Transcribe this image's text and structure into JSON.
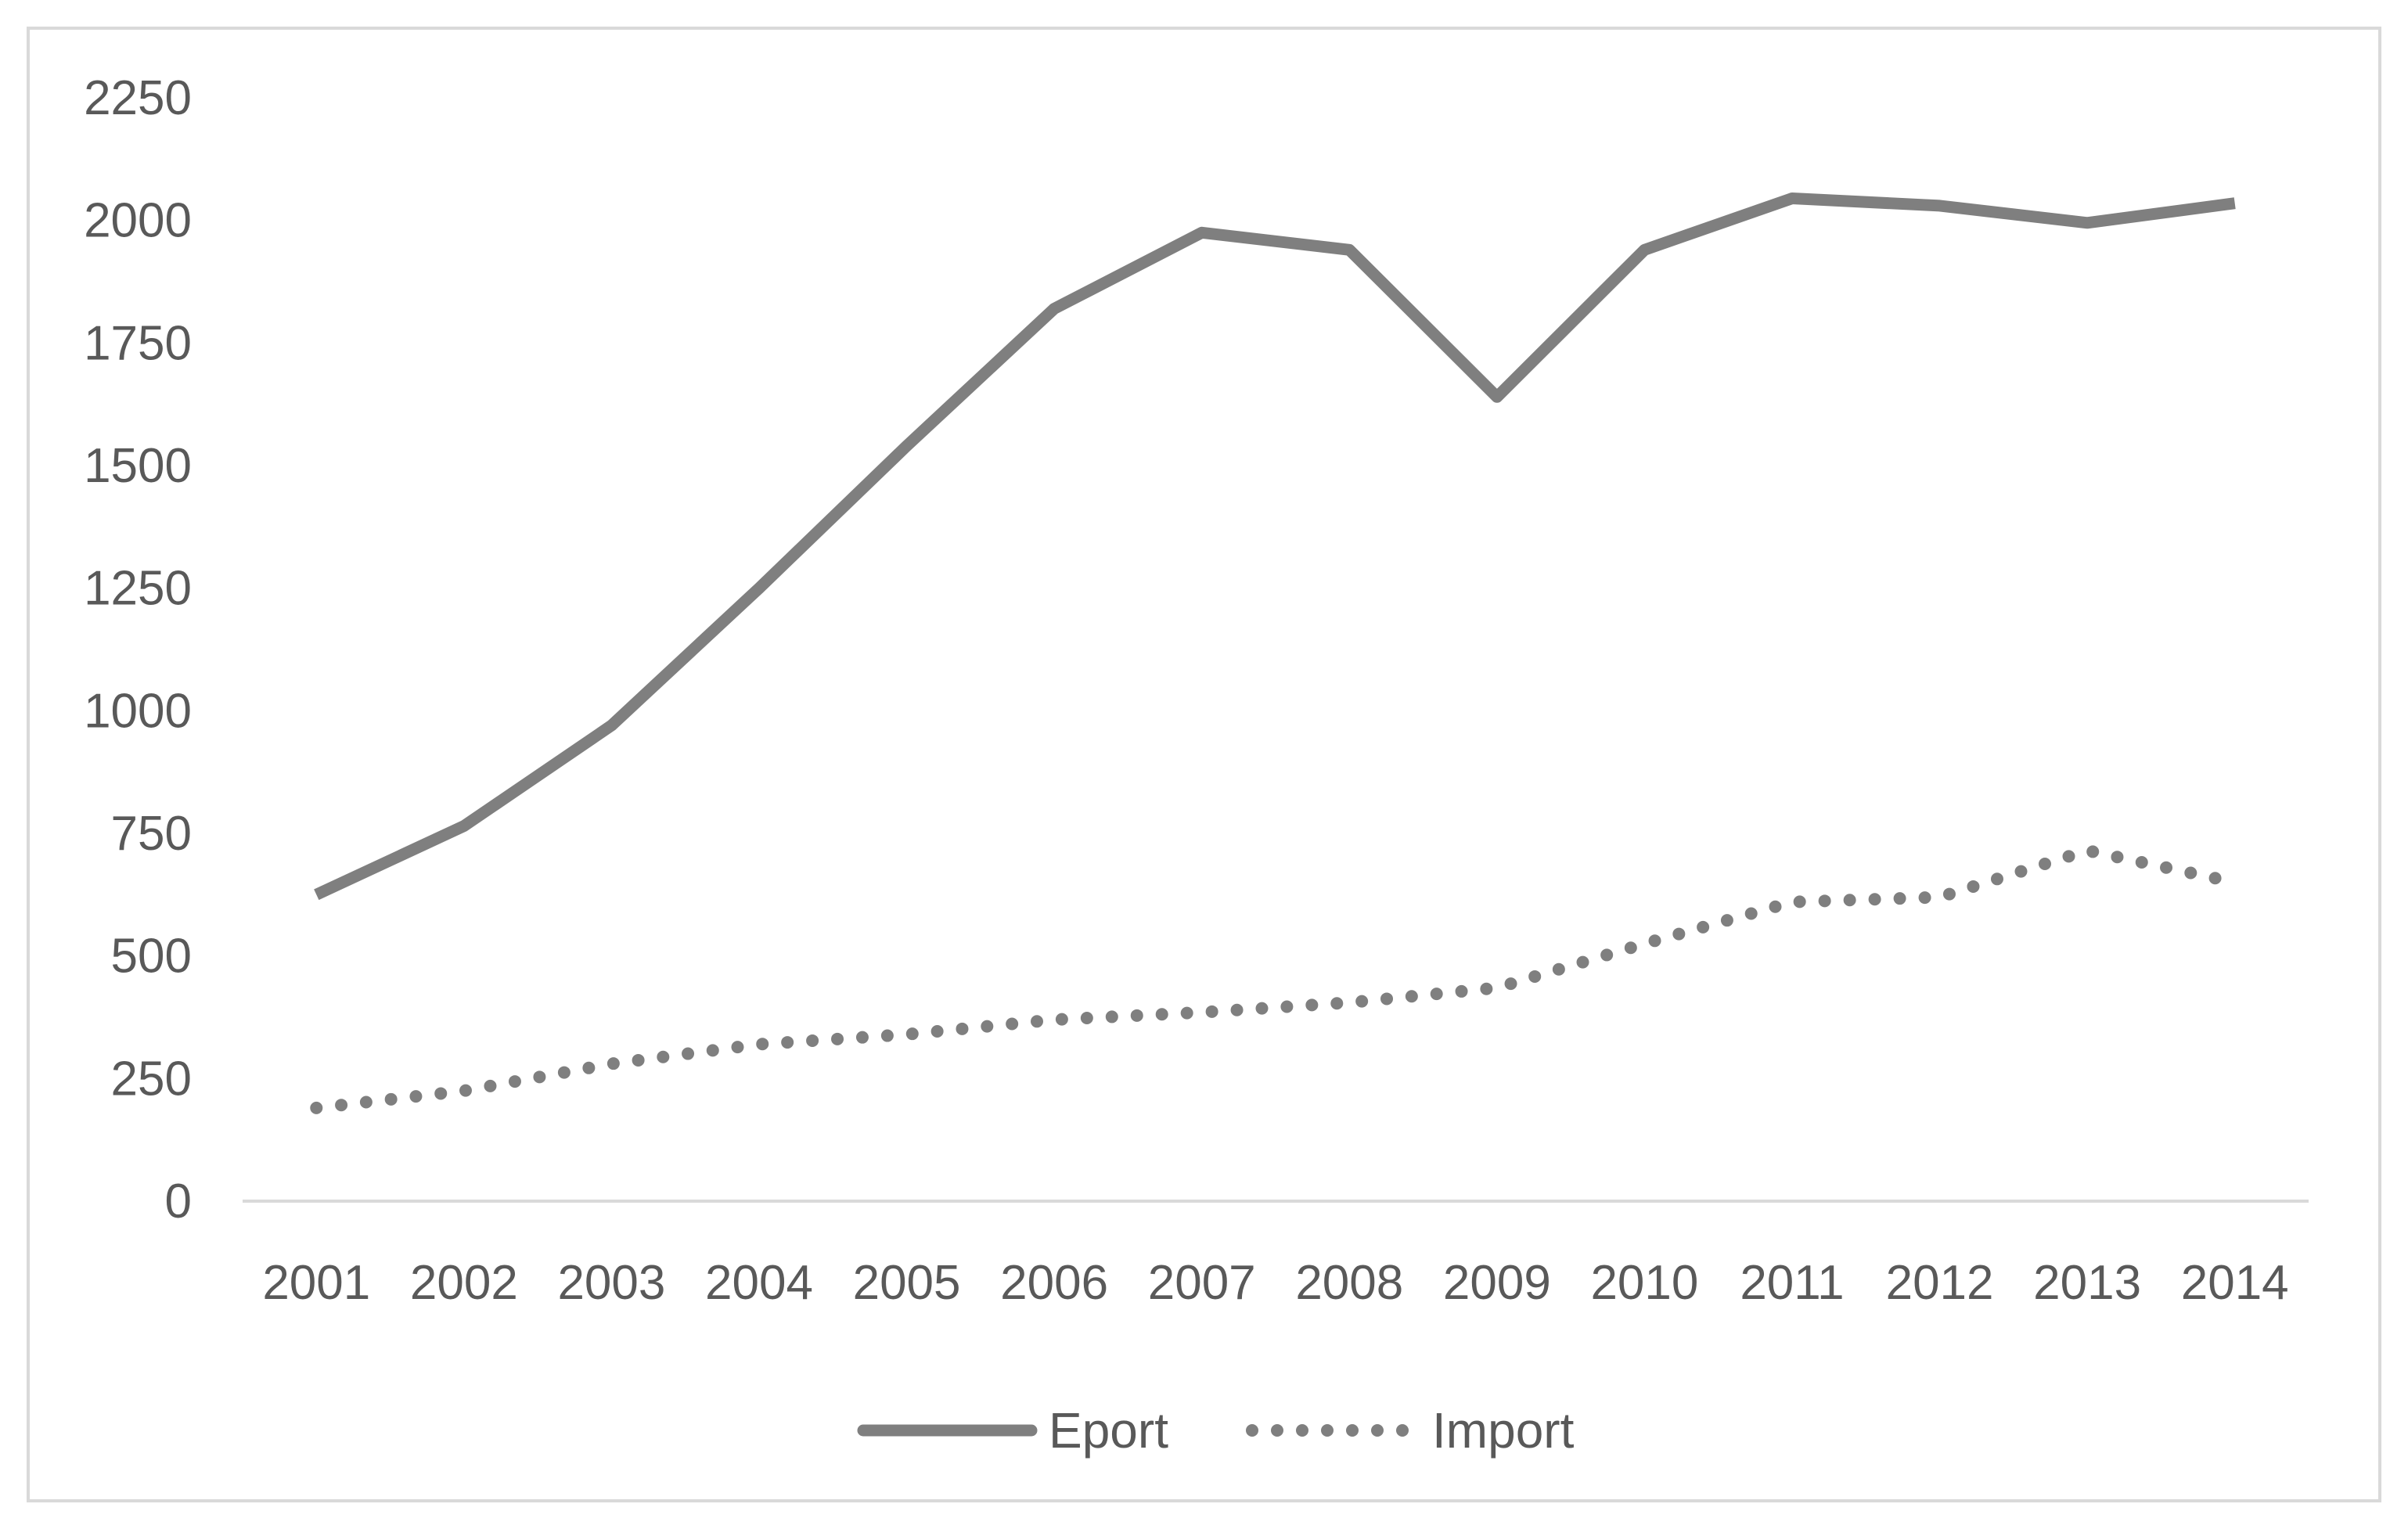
{
  "chart_data": {
    "type": "line",
    "title": "",
    "xlabel": "",
    "ylabel": "",
    "categories": [
      "2001",
      "2002",
      "2003",
      "2004",
      "2005",
      "2006",
      "2007",
      "2008",
      "2009",
      "2010",
      "2011",
      "2012",
      "2013",
      "2014"
    ],
    "ylim": [
      0,
      2250
    ],
    "yticks": [
      0,
      250,
      500,
      750,
      1000,
      1250,
      1500,
      1750,
      2000,
      2250
    ],
    "ytick_labels": [
      "0",
      "250",
      "500",
      "750",
      "1000",
      "1250",
      "1500",
      "1750",
      "2000",
      "2250"
    ],
    "grid": false,
    "legend_position": "bottom",
    "series": [
      {
        "name": "Eport",
        "style": "solid",
        "color": "#7f7f7f",
        "values": [
          625,
          765,
          970,
          1250,
          1540,
          1820,
          1975,
          1940,
          1640,
          1940,
          2045,
          2030,
          1995,
          2035
        ]
      },
      {
        "name": "Import",
        "style": "dotted",
        "color": "#7f7f7f",
        "values": [
          190,
          225,
          280,
          320,
          340,
          370,
          385,
          405,
          435,
          525,
          610,
          620,
          715,
          650
        ]
      }
    ]
  },
  "colors": {
    "axis": "#d9d9d9",
    "text": "#595959",
    "series": "#7f7f7f"
  }
}
